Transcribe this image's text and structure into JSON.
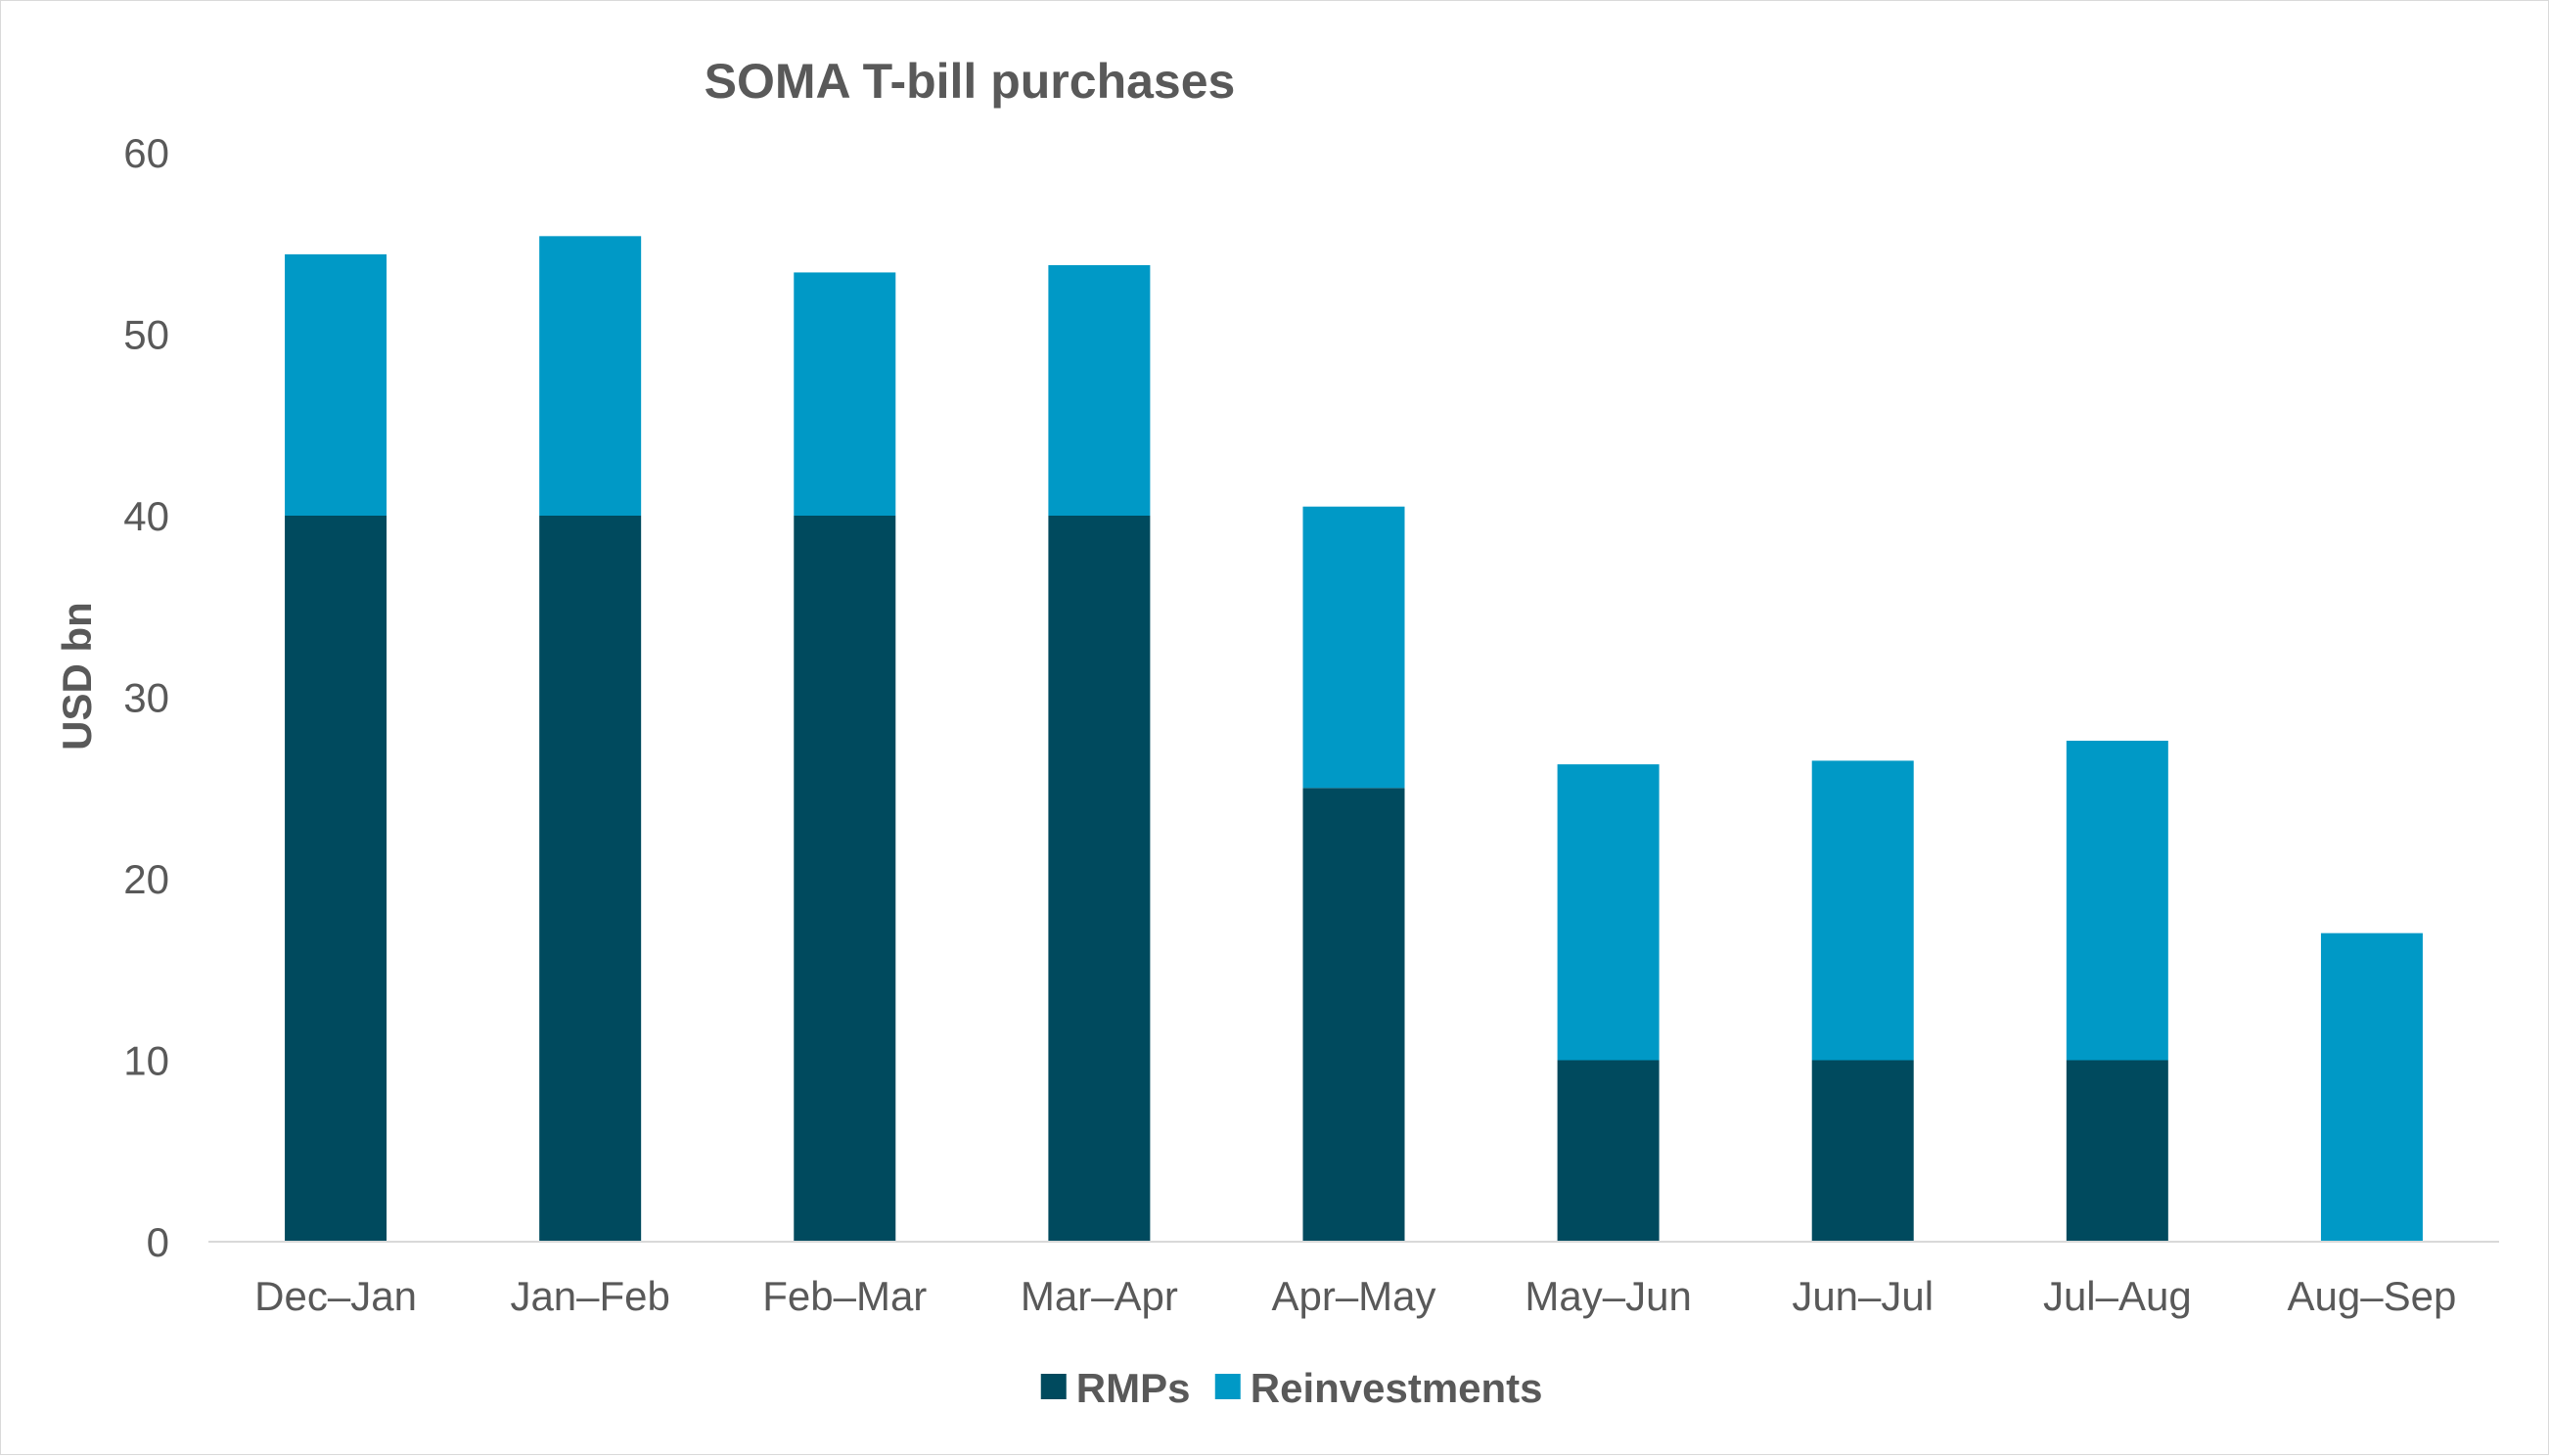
{
  "chart_data": {
    "type": "bar",
    "stacked": true,
    "title": "SOMA T-bill purchases",
    "ylabel": "USD bn",
    "xlabel": "",
    "ylim": [
      0,
      60
    ],
    "yticks": [
      0,
      10,
      20,
      30,
      40,
      50,
      60
    ],
    "categories": [
      "Dec–Jan",
      "Jan–Feb",
      "Feb–Mar",
      "Mar–Apr",
      "Apr–May",
      "May–Jun",
      "Jun–Jul",
      "Jul–Aug",
      "Aug–Sep"
    ],
    "series": [
      {
        "name": "RMPs",
        "color": "#004A5E",
        "values": [
          40,
          40,
          40,
          40,
          25,
          10,
          10,
          10,
          0
        ]
      },
      {
        "name": "Reinvestments",
        "color": "#0099C6",
        "values": [
          14.4,
          15.4,
          13.4,
          13.8,
          15.5,
          16.3,
          16.5,
          17.6,
          17
        ]
      }
    ],
    "grid": false,
    "legend_position": "bottom"
  }
}
